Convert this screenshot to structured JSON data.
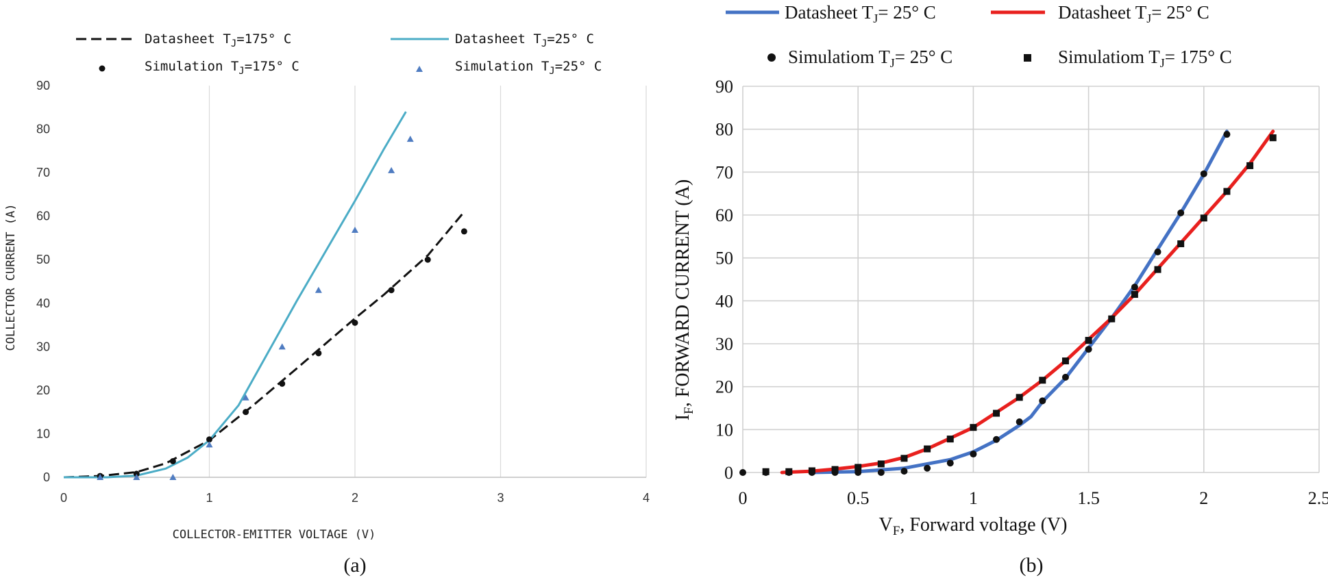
{
  "chart_data": [
    {
      "type": "line",
      "panel_label": "(a)",
      "xlabel": "COLLECTOR-EMITTER VOLTAGE (V)",
      "ylabel": "COLLECTOR CURRENT (A)",
      "xlim": [
        0,
        4
      ],
      "ylim": [
        0,
        90
      ],
      "xticks": [
        "0",
        "1",
        "2",
        "3",
        "4"
      ],
      "yticks": [
        "0",
        "10",
        "20",
        "30",
        "40",
        "50",
        "60",
        "70",
        "80",
        "90"
      ],
      "grid": "vertical",
      "legend_position": "top",
      "series": [
        {
          "name": "Datasheet T_J=175° C",
          "legend_main": "Datasheet  T",
          "legend_sub": "J",
          "legend_tail": "=175° C",
          "kind": "line",
          "style": "dashed",
          "color": "#111111",
          "x": [
            0,
            0.25,
            0.5,
            0.7,
            1.0,
            1.3,
            1.6,
            2.0,
            2.2,
            2.5,
            2.75
          ],
          "y": [
            0,
            0.3,
            1.2,
            3.2,
            8.5,
            16.5,
            25,
            36.5,
            42,
            51,
            61
          ]
        },
        {
          "name": "Datasheet T_J=25° C",
          "legend_main": "Datasheet  T",
          "legend_sub": "J",
          "legend_tail": "=25° C",
          "kind": "line",
          "style": "solid",
          "color": "#4bacc6",
          "x": [
            0,
            0.3,
            0.5,
            0.7,
            0.85,
            1.0,
            1.2,
            1.4,
            1.6,
            1.8,
            2.0,
            2.2,
            2.35
          ],
          "y": [
            0,
            0,
            0.4,
            2.0,
            4.5,
            8.5,
            16.5,
            28.5,
            40.5,
            52,
            63.5,
            75.5,
            84
          ]
        },
        {
          "name": "Simulation T_J=175° C",
          "legend_main": "Simulation T",
          "legend_sub": "J",
          "legend_tail": "=175° C",
          "kind": "scatter",
          "marker": "circle",
          "color": "#111111",
          "x": [
            0.25,
            0.5,
            0.75,
            1.0,
            1.25,
            1.5,
            1.75,
            2.0,
            2.25,
            2.5,
            2.75
          ],
          "y": [
            0.3,
            0.8,
            3.7,
            8.7,
            15,
            21.5,
            28.5,
            35.5,
            43,
            50,
            56.5
          ]
        },
        {
          "name": "Simulation T_J=25° C",
          "legend_main": "Simulation T",
          "legend_sub": "J",
          "legend_tail": "=25° C",
          "kind": "scatter",
          "marker": "triangle",
          "color": "#4f7cc1",
          "x": [
            0.25,
            0.5,
            0.75,
            1.0,
            1.25,
            1.5,
            1.75,
            2.0,
            2.25,
            2.38
          ],
          "y": [
            0,
            0,
            0,
            7.5,
            18.3,
            30,
            43,
            56.8,
            70.5,
            77.7
          ]
        }
      ]
    },
    {
      "type": "line",
      "panel_label": "(b)",
      "xlabel": "V_F, Forward voltage (V)",
      "xlabel_main": "V",
      "xlabel_sub": "F",
      "xlabel_tail": ", Forward voltage (V)",
      "ylabel": "I_F, FORWARD CURRENT (A)",
      "ylabel_main": "I",
      "ylabel_sub": "F",
      "ylabel_tail": ", FORWARD CURRENT (A)",
      "xlim": [
        0,
        2.5
      ],
      "ylim": [
        0,
        90
      ],
      "xticks": [
        "0",
        "0.5",
        "1",
        "1.5",
        "2",
        "2.5"
      ],
      "yticks": [
        "0",
        "10",
        "20",
        "30",
        "40",
        "50",
        "60",
        "70",
        "80",
        "90"
      ],
      "grid": "both",
      "legend_position": "top",
      "series": [
        {
          "name": "Datasheet T_J= 25° C (blue)",
          "legend_main": "Datasheet T",
          "legend_sub": "J",
          "legend_tail": "= 25° C",
          "kind": "line",
          "color": "#4472c4",
          "x": [
            0.3,
            0.5,
            0.7,
            0.9,
            1.0,
            1.1,
            1.2,
            1.25,
            1.3,
            1.4,
            1.5,
            1.6,
            1.7,
            1.8,
            1.9,
            2.0,
            2.1
          ],
          "y": [
            0,
            0.2,
            1.0,
            3.0,
            4.8,
            7.5,
            11,
            13,
            16.5,
            22,
            29,
            36,
            43.5,
            52,
            60.5,
            69.5,
            79.5
          ]
        },
        {
          "name": "Datasheet T_J= 25° C (red)",
          "legend_main": "Datasheet T",
          "legend_sub": "J",
          "legend_tail": "= 25° C",
          "kind": "line",
          "color": "#e8201e",
          "x": [
            0.17,
            0.3,
            0.4,
            0.5,
            0.6,
            0.7,
            0.8,
            0.9,
            1.0,
            1.1,
            1.2,
            1.3,
            1.4,
            1.5,
            1.6,
            1.7,
            1.8,
            1.9,
            2.0,
            2.1,
            2.2,
            2.3
          ],
          "y": [
            0,
            0.3,
            0.8,
            1.4,
            2.2,
            3.5,
            5.5,
            8,
            10.5,
            14,
            17.5,
            21.5,
            26,
            31,
            36,
            41.5,
            47.5,
            53.5,
            59.5,
            65.5,
            72,
            79.5
          ]
        },
        {
          "name": "Simulatiom T_J= 25° C",
          "legend_main": "Simulatiom T",
          "legend_sub": "J",
          "legend_tail": "= 25° C",
          "kind": "scatter",
          "marker": "circle",
          "color": "#111111",
          "x": [
            0,
            0.1,
            0.2,
            0.3,
            0.4,
            0.5,
            0.6,
            0.7,
            0.8,
            0.9,
            1.0,
            1.1,
            1.2,
            1.3,
            1.4,
            1.5,
            1.6,
            1.7,
            1.8,
            1.9,
            2.0,
            2.1
          ],
          "y": [
            0,
            0,
            0,
            0,
            0,
            0,
            0,
            0.3,
            1,
            2.2,
            4.3,
            7.7,
            11.8,
            16.7,
            22.2,
            28.7,
            35.8,
            43.2,
            51.4,
            60.5,
            69.6,
            78.8
          ]
        },
        {
          "name": "Simulatiom T_J= 175° C",
          "legend_main": "Simulatiom T",
          "legend_sub": "J",
          "legend_tail": "= 175° C",
          "kind": "scatter",
          "marker": "square",
          "color": "#111111",
          "x": [
            0.1,
            0.2,
            0.3,
            0.4,
            0.5,
            0.6,
            0.7,
            0.8,
            0.9,
            1.0,
            1.1,
            1.2,
            1.3,
            1.4,
            1.5,
            1.6,
            1.7,
            1.8,
            1.9,
            2.0,
            2.1,
            2.2,
            2.3
          ],
          "y": [
            0.2,
            0.2,
            0.4,
            0.7,
            1.2,
            2,
            3.3,
            5.5,
            7.8,
            10.5,
            13.8,
            17.5,
            21.5,
            26,
            30.8,
            35.8,
            41.5,
            47.3,
            53.3,
            59.3,
            65.5,
            71.5,
            78
          ]
        }
      ]
    }
  ]
}
